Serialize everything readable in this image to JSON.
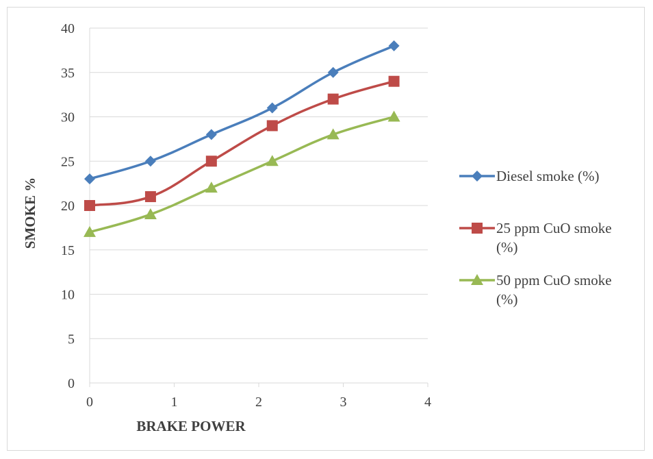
{
  "chart_data": {
    "type": "line",
    "title": "",
    "xlabel": "BRAKE POWER",
    "ylabel": "SMOKE %",
    "xlim": [
      0,
      4
    ],
    "ylim": [
      0,
      40
    ],
    "x_ticks": [
      "0",
      "1",
      "2",
      "3",
      "4"
    ],
    "y_ticks": [
      "0",
      "5",
      "10",
      "15",
      "20",
      "25",
      "30",
      "35",
      "40"
    ],
    "grid": "horizontal",
    "legend_position": "right",
    "smooth": true,
    "x": [
      0,
      0.72,
      1.44,
      2.16,
      2.88,
      3.6
    ],
    "series": [
      {
        "name": "Diesel smoke (%)",
        "name_lines": [
          "Diesel smoke (%)"
        ],
        "color": "#4a7ebb",
        "marker": "diamond",
        "values": [
          23,
          25,
          28,
          31,
          35,
          38
        ]
      },
      {
        "name": "25 ppm CuO smoke (%)",
        "name_lines": [
          "25 ppm CuO smoke",
          "(%)"
        ],
        "color": "#be4b48",
        "marker": "square",
        "values": [
          20,
          21,
          25,
          29,
          32,
          34
        ]
      },
      {
        "name": "50 ppm CuO smoke (%)",
        "name_lines": [
          "50 ppm CuO smoke",
          "(%)"
        ],
        "color": "#98b954",
        "marker": "triangle",
        "values": [
          17,
          19,
          22,
          25,
          28,
          30
        ]
      }
    ]
  }
}
